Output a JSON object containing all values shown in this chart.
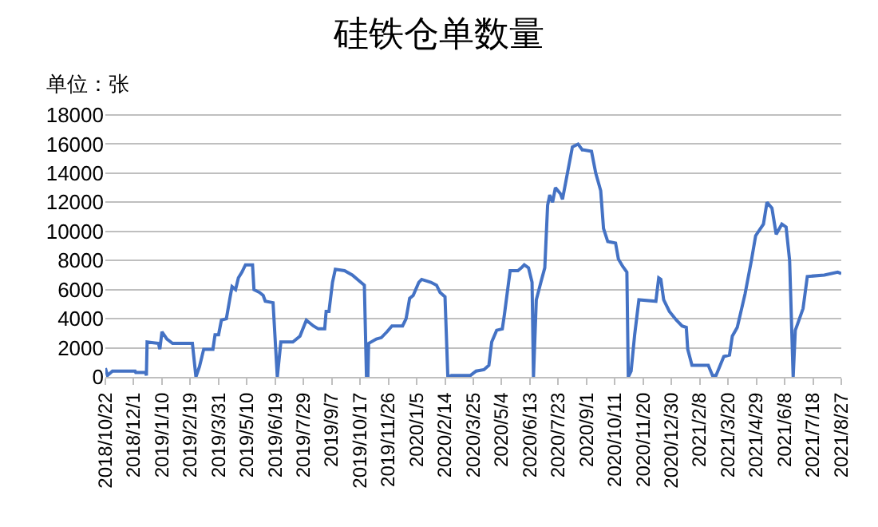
{
  "chart_data": {
    "type": "line",
    "title": "硅铁仓单数量",
    "annotations": [
      "单位：张"
    ],
    "x": [
      "2018-10-22",
      "2018-10-25",
      "2018-11-01",
      "2018-12-03",
      "2018-12-04",
      "2018-12-18",
      "2018-12-19",
      "2018-12-20",
      "2019-01-05",
      "2019-01-07",
      "2019-01-10",
      "2019-01-17",
      "2019-01-25",
      "2019-02-22",
      "2019-02-27",
      "2019-03-04",
      "2019-03-10",
      "2019-03-23",
      "2019-03-26",
      "2019-03-31",
      "2019-04-04",
      "2019-04-11",
      "2019-04-16",
      "2019-04-19",
      "2019-04-24",
      "2019-04-28",
      "2019-05-03",
      "2019-05-08",
      "2019-05-18",
      "2019-05-20",
      "2019-05-28",
      "2019-06-02",
      "2019-06-05",
      "2019-06-16",
      "2019-06-22",
      "2019-06-27",
      "2019-07-14",
      "2019-07-24",
      "2019-08-02",
      "2019-08-12",
      "2019-08-19",
      "2019-08-28",
      "2019-08-30",
      "2019-09-03",
      "2019-09-08",
      "2019-09-12",
      "2019-09-25",
      "2019-10-06",
      "2019-10-18",
      "2019-10-23",
      "2019-10-26",
      "2019-10-28",
      "2019-10-29",
      "2019-11-09",
      "2019-11-16",
      "2019-11-24",
      "2019-12-01",
      "2019-12-16",
      "2019-12-21",
      "2019-12-26",
      "2019-12-31",
      "2020-01-08",
      "2020-01-12",
      "2020-01-25",
      "2020-02-02",
      "2020-02-07",
      "2020-02-14",
      "2020-02-18",
      "2020-02-23",
      "2020-03-21",
      "2020-03-29",
      "2020-04-09",
      "2020-04-16",
      "2020-04-20",
      "2020-04-27",
      "2020-05-05",
      "2020-05-08",
      "2020-05-16",
      "2020-05-27",
      "2020-06-01",
      "2020-06-05",
      "2020-06-11",
      "2020-06-16",
      "2020-06-18",
      "2020-06-22",
      "2020-06-29",
      "2020-07-04",
      "2020-07-08",
      "2020-07-11",
      "2020-07-15",
      "2020-07-19",
      "2020-07-26",
      "2020-07-29",
      "2020-08-05",
      "2020-08-12",
      "2020-08-20",
      "2020-08-26",
      "2020-08-28",
      "2020-09-08",
      "2020-09-14",
      "2020-09-21",
      "2020-09-25",
      "2020-10-01",
      "2020-10-12",
      "2020-10-16",
      "2020-10-22",
      "2020-10-28",
      "2020-10-30",
      "2020-11-03",
      "2020-11-08",
      "2020-11-14",
      "2020-12-08",
      "2020-12-12",
      "2020-12-15",
      "2020-12-19",
      "2020-12-27",
      "2021-01-06",
      "2021-01-14",
      "2021-01-20",
      "2021-01-22",
      "2021-01-28",
      "2021-02-20",
      "2021-02-26",
      "2021-03-03",
      "2021-03-14",
      "2021-03-22",
      "2021-03-26",
      "2021-04-02",
      "2021-04-13",
      "2021-04-22",
      "2021-04-28",
      "2021-05-09",
      "2021-05-14",
      "2021-05-21",
      "2021-05-27",
      "2021-06-04",
      "2021-06-10",
      "2021-06-15",
      "2021-06-20",
      "2021-06-23",
      "2021-06-26",
      "2021-07-04",
      "2021-07-10",
      "2021-08-03",
      "2021-08-22",
      "2021-08-27"
    ],
    "series": [
      {
        "color": "#4472c4",
        "values": [
          600,
          100,
          400,
          400,
          300,
          300,
          100,
          2400,
          2300,
          1900,
          3100,
          2600,
          2300,
          2300,
          0,
          700,
          1900,
          1900,
          2900,
          2900,
          3900,
          4000,
          5400,
          6200,
          6000,
          6800,
          7200,
          7700,
          7700,
          6000,
          5800,
          5600,
          5200,
          5100,
          0,
          2400,
          2400,
          2800,
          3900,
          3500,
          3300,
          3300,
          4500,
          4500,
          6500,
          7400,
          7300,
          7000,
          6500,
          6300,
          0,
          0,
          2300,
          2600,
          2700,
          3100,
          3500,
          3500,
          4000,
          5400,
          5600,
          6500,
          6700,
          6500,
          6300,
          5800,
          5500,
          0,
          100,
          100,
          400,
          500,
          800,
          2400,
          3200,
          3300,
          4300,
          7300,
          7300,
          7500,
          7700,
          7500,
          6500,
          0,
          5300,
          6600,
          7500,
          11800,
          12500,
          12000,
          13000,
          12600,
          12200,
          14000,
          15800,
          16000,
          15600,
          15600,
          15500,
          14000,
          12800,
          10200,
          9300,
          9200,
          8100,
          7600,
          7200,
          0,
          400,
          2900,
          5300,
          5200,
          6800,
          6700,
          5300,
          4500,
          3900,
          3500,
          3400,
          1900,
          800,
          800,
          100,
          100,
          1400,
          1500,
          2800,
          3400,
          5700,
          8000,
          9700,
          10500,
          12000,
          11600,
          9800,
          10500,
          10300,
          8000,
          0,
          3200,
          3600,
          4700,
          6900,
          7000,
          7200,
          7100
        ]
      }
    ],
    "xlim": [
      "2018-10-22",
      "2021-08-27"
    ],
    "xticks": [
      {
        "value": "2018-10-22",
        "label": "2018/10/22"
      },
      {
        "value": "2018-12-01",
        "label": "2018/12/1"
      },
      {
        "value": "2019-01-10",
        "label": "2019/1/10"
      },
      {
        "value": "2019-02-19",
        "label": "2019/2/19"
      },
      {
        "value": "2019-03-31",
        "label": "2019/3/31"
      },
      {
        "value": "2019-05-10",
        "label": "2019/5/10"
      },
      {
        "value": "2019-06-19",
        "label": "2019/6/19"
      },
      {
        "value": "2019-07-29",
        "label": "2019/7/29"
      },
      {
        "value": "2019-09-07",
        "label": "2019/9/7"
      },
      {
        "value": "2019-10-17",
        "label": "2019/10/17"
      },
      {
        "value": "2019-11-26",
        "label": "2019/11/26"
      },
      {
        "value": "2020-01-05",
        "label": "2020/1/5"
      },
      {
        "value": "2020-02-14",
        "label": "2020/2/14"
      },
      {
        "value": "2020-03-25",
        "label": "2020/3/25"
      },
      {
        "value": "2020-05-04",
        "label": "2020/5/4"
      },
      {
        "value": "2020-06-13",
        "label": "2020/6/13"
      },
      {
        "value": "2020-07-23",
        "label": "2020/7/23"
      },
      {
        "value": "2020-09-01",
        "label": "2020/9/1"
      },
      {
        "value": "2020-10-11",
        "label": "2020/10/11"
      },
      {
        "value": "2020-11-20",
        "label": "2020/11/20"
      },
      {
        "value": "2020-12-30",
        "label": "2020/12/30"
      },
      {
        "value": "2021-02-08",
        "label": "2021/2/8"
      },
      {
        "value": "2021-03-20",
        "label": "2021/3/20"
      },
      {
        "value": "2021-04-29",
        "label": "2021/4/29"
      },
      {
        "value": "2021-06-08",
        "label": "2021/6/8"
      },
      {
        "value": "2021-07-18",
        "label": "2021/7/18"
      },
      {
        "value": "2021-08-27",
        "label": "2021/8/27"
      }
    ],
    "ylim": [
      0,
      18000
    ],
    "yticks": [
      0,
      2000,
      4000,
      6000,
      8000,
      10000,
      12000,
      14000,
      16000,
      18000
    ],
    "grid": "y",
    "marker": "none",
    "line_style": "solid"
  }
}
